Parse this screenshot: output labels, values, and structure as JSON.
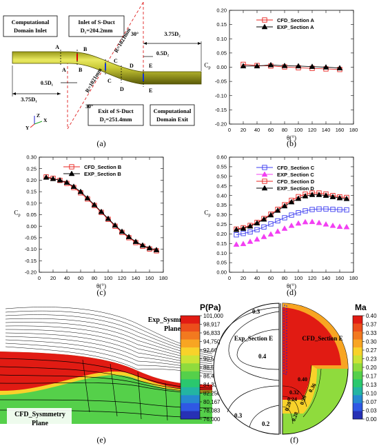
{
  "panel_labels": [
    "(a)",
    "(b)",
    "(c)",
    "(d)",
    "(e)",
    "(f)"
  ],
  "panel_a": {
    "domain_inlet": [
      "Computational",
      "Domain Inlet"
    ],
    "inlet_sduct": [
      "Inlet of S-Duct",
      "D₁=204.2mm"
    ],
    "exit_sduct": [
      "Exit of S-Duct",
      "D₂=251.4mm"
    ],
    "domain_exit": [
      "Computational",
      "Domain Exit"
    ],
    "dim_left": "3.75D₁",
    "dim_right": "3.75D₂",
    "dim_half_left": "0.5D₁",
    "dim_half_right": "0.5D₂",
    "angle_top": "30°",
    "angle_bottom": "30°",
    "radius_top": "R=1021mm",
    "radius_bottom": "R=1021mm",
    "section_letters": [
      "A",
      "A",
      "B",
      "B",
      "C",
      "C",
      "D",
      "D",
      "E",
      "E"
    ],
    "axis_letters": [
      "Z",
      "X",
      "Y"
    ]
  },
  "panel_e": {
    "exp_label": [
      "Exp_Sysmmetry",
      "Plane"
    ],
    "cfd_label": [
      "CFD_Sysmmetry",
      "Plane"
    ]
  },
  "panel_f": {
    "exp_label": "Exp_Section E",
    "cfd_label": "CFD_Section E",
    "contour_labels": [
      "0.3",
      "0.4",
      "0.3",
      "0.2",
      "0.40",
      "0.36",
      "0.32",
      "0.28",
      "0.20",
      "0.24",
      "0.28"
    ]
  },
  "chart_data": [
    {
      "type": "line",
      "panel": "b",
      "xlabel": "θ(°)",
      "ylabel": "Cp",
      "xlim": [
        0,
        180
      ],
      "ylim": [
        -0.2,
        0.2
      ],
      "xticks": [
        0,
        20,
        40,
        60,
        80,
        100,
        120,
        140,
        160,
        180
      ],
      "yticks": [
        -0.2,
        -0.15,
        -0.1,
        -0.05,
        0.0,
        0.05,
        0.1,
        0.15,
        0.2
      ],
      "ytick_labels": [
        "-0.20",
        "-0.15",
        "-0.10",
        "-0.05",
        "0.00",
        "0.05",
        "0.10",
        "0.15",
        "0.20"
      ],
      "legend_position": "top-center",
      "series": [
        {
          "name": "CFD_Section A",
          "color": "#e8231f",
          "marker": "open-square",
          "line": true,
          "x": [
            20,
            40,
            60,
            80,
            100,
            120,
            140,
            160
          ],
          "y": [
            0.01,
            0.006,
            0.004,
            0.001,
            -0.002,
            -0.004,
            -0.006,
            -0.008
          ]
        },
        {
          "name": "EXP_Section A",
          "color": "#000000",
          "marker": "filled-triangle",
          "line": true,
          "x": [
            20,
            40,
            60,
            80,
            100,
            120,
            140,
            160
          ],
          "y": [
            0.004,
            0.004,
            0.008,
            0.005,
            0.004,
            0.002,
            0.0,
            -0.003
          ]
        }
      ]
    },
    {
      "type": "line",
      "panel": "c",
      "xlabel": "θ(°)",
      "ylabel": "Cp",
      "xlim": [
        0,
        180
      ],
      "ylim": [
        -0.2,
        0.3
      ],
      "xticks": [
        0,
        20,
        40,
        60,
        80,
        100,
        120,
        140,
        160,
        180
      ],
      "yticks": [
        -0.2,
        -0.15,
        -0.1,
        -0.05,
        0.0,
        0.05,
        0.1,
        0.15,
        0.2,
        0.25,
        0.3
      ],
      "ytick_labels": [
        "-0.20",
        "-0.15",
        "-0.10",
        "-0.05",
        "0.00",
        "0.05",
        "0.10",
        "0.15",
        "0.20",
        "0.25",
        "0.30"
      ],
      "legend_position": "top-center",
      "series": [
        {
          "name": "CFD_Section B",
          "color": "#e8231f",
          "marker": "open-square",
          "line": true,
          "x": [
            10,
            20,
            30,
            40,
            50,
            60,
            70,
            80,
            90,
            100,
            110,
            120,
            130,
            140,
            150,
            160,
            170
          ],
          "y": [
            0.214,
            0.208,
            0.199,
            0.186,
            0.168,
            0.145,
            0.118,
            0.09,
            0.06,
            0.03,
            0.0,
            -0.027,
            -0.05,
            -0.071,
            -0.087,
            -0.099,
            -0.107
          ]
        },
        {
          "name": "EXP_Section B",
          "color": "#000000",
          "marker": "filled-triangle",
          "line": true,
          "x": [
            10,
            20,
            30,
            40,
            50,
            60,
            70,
            80,
            90,
            100,
            110,
            120,
            130,
            140,
            150,
            160,
            170
          ],
          "y": [
            0.212,
            0.206,
            0.2,
            0.19,
            0.172,
            0.15,
            0.122,
            0.093,
            0.063,
            0.033,
            0.004,
            -0.023,
            -0.046,
            -0.067,
            -0.083,
            -0.095,
            -0.103
          ]
        }
      ]
    },
    {
      "type": "line",
      "panel": "d",
      "xlabel": "θ(°)",
      "ylabel": "Cp",
      "xlim": [
        0,
        180
      ],
      "ylim": [
        0.0,
        0.6
      ],
      "xticks": [
        0,
        20,
        40,
        60,
        80,
        100,
        120,
        140,
        160,
        180
      ],
      "yticks": [
        0.0,
        0.05,
        0.1,
        0.15,
        0.2,
        0.25,
        0.3,
        0.35,
        0.4,
        0.45,
        0.5,
        0.55,
        0.6
      ],
      "ytick_labels": [
        "0.00",
        "0.05",
        "0.10",
        "0.15",
        "0.20",
        "0.25",
        "0.30",
        "0.35",
        "0.40",
        "0.45",
        "0.50",
        "0.55",
        "0.60"
      ],
      "legend_position": "top-center",
      "series": [
        {
          "name": "CFD_Section C",
          "color": "#3b3bf0",
          "marker": "open-square",
          "line": true,
          "x": [
            10,
            20,
            30,
            40,
            50,
            60,
            70,
            80,
            90,
            100,
            110,
            120,
            130,
            140,
            150,
            160,
            170
          ],
          "y": [
            0.195,
            0.202,
            0.21,
            0.222,
            0.236,
            0.252,
            0.268,
            0.284,
            0.298,
            0.31,
            0.32,
            0.327,
            0.33,
            0.33,
            0.328,
            0.326,
            0.325
          ]
        },
        {
          "name": "EXP_Section C",
          "color": "#f23ff2",
          "marker": "filled-triangle",
          "line": false,
          "x": [
            10,
            20,
            30,
            40,
            50,
            60,
            70,
            80,
            90,
            100,
            110,
            120,
            130,
            140,
            150,
            160,
            170
          ],
          "y": [
            0.145,
            0.148,
            0.16,
            0.172,
            0.185,
            0.198,
            0.213,
            0.228,
            0.243,
            0.255,
            0.262,
            0.263,
            0.258,
            0.25,
            0.243,
            0.238,
            0.236
          ]
        },
        {
          "name": "CFD_Section D",
          "color": "#e8231f",
          "marker": "open-square",
          "line": true,
          "x": [
            10,
            20,
            30,
            40,
            50,
            60,
            70,
            80,
            90,
            100,
            110,
            120,
            130,
            140,
            150,
            160,
            170
          ],
          "y": [
            0.225,
            0.232,
            0.244,
            0.26,
            0.28,
            0.303,
            0.328,
            0.352,
            0.375,
            0.394,
            0.407,
            0.413,
            0.413,
            0.408,
            0.4,
            0.393,
            0.39
          ]
        },
        {
          "name": "EXP_Section D",
          "color": "#000000",
          "marker": "filled-triangle",
          "line": true,
          "x": [
            10,
            20,
            30,
            40,
            50,
            60,
            70,
            80,
            90,
            100,
            110,
            120,
            130,
            140,
            150,
            160,
            170
          ],
          "y": [
            0.222,
            0.228,
            0.24,
            0.256,
            0.276,
            0.298,
            0.322,
            0.345,
            0.366,
            0.384,
            0.397,
            0.404,
            0.404,
            0.4,
            0.393,
            0.387,
            0.383
          ]
        }
      ]
    },
    {
      "type": "heatmap",
      "panel": "e",
      "colorbar_title": "P(Pa)",
      "colorbar_labels": [
        "101,000",
        "98,917",
        "96,833",
        "94,750",
        "92,667",
        "90,583",
        "88,500",
        "86,417",
        "84,333",
        "82,250",
        "80,167",
        "78,083",
        "76,000"
      ],
      "colorbar_colors": [
        "#e11b13",
        "#ec4e1b",
        "#f2791f",
        "#f8a522",
        "#f8d22a",
        "#cbe336",
        "#8fdb3d",
        "#55d04a",
        "#2ac86e",
        "#23b5a2",
        "#2689d0",
        "#2f58e4",
        "#2731b5"
      ]
    },
    {
      "type": "heatmap",
      "panel": "f",
      "colorbar_title": "Ma",
      "colorbar_labels": [
        "0.40",
        "0.37",
        "0.33",
        "0.30",
        "0.27",
        "0.23",
        "0.20",
        "0.17",
        "0.13",
        "0.10",
        "0.07",
        "0.03",
        "0.00"
      ],
      "colorbar_colors": [
        "#e11b13",
        "#ec4e1b",
        "#f2791f",
        "#f8a522",
        "#f8d22a",
        "#cbe336",
        "#8fdb3d",
        "#55d04a",
        "#2ac86e",
        "#23b5a2",
        "#2689d0",
        "#2f58e4",
        "#2731b5"
      ]
    }
  ]
}
